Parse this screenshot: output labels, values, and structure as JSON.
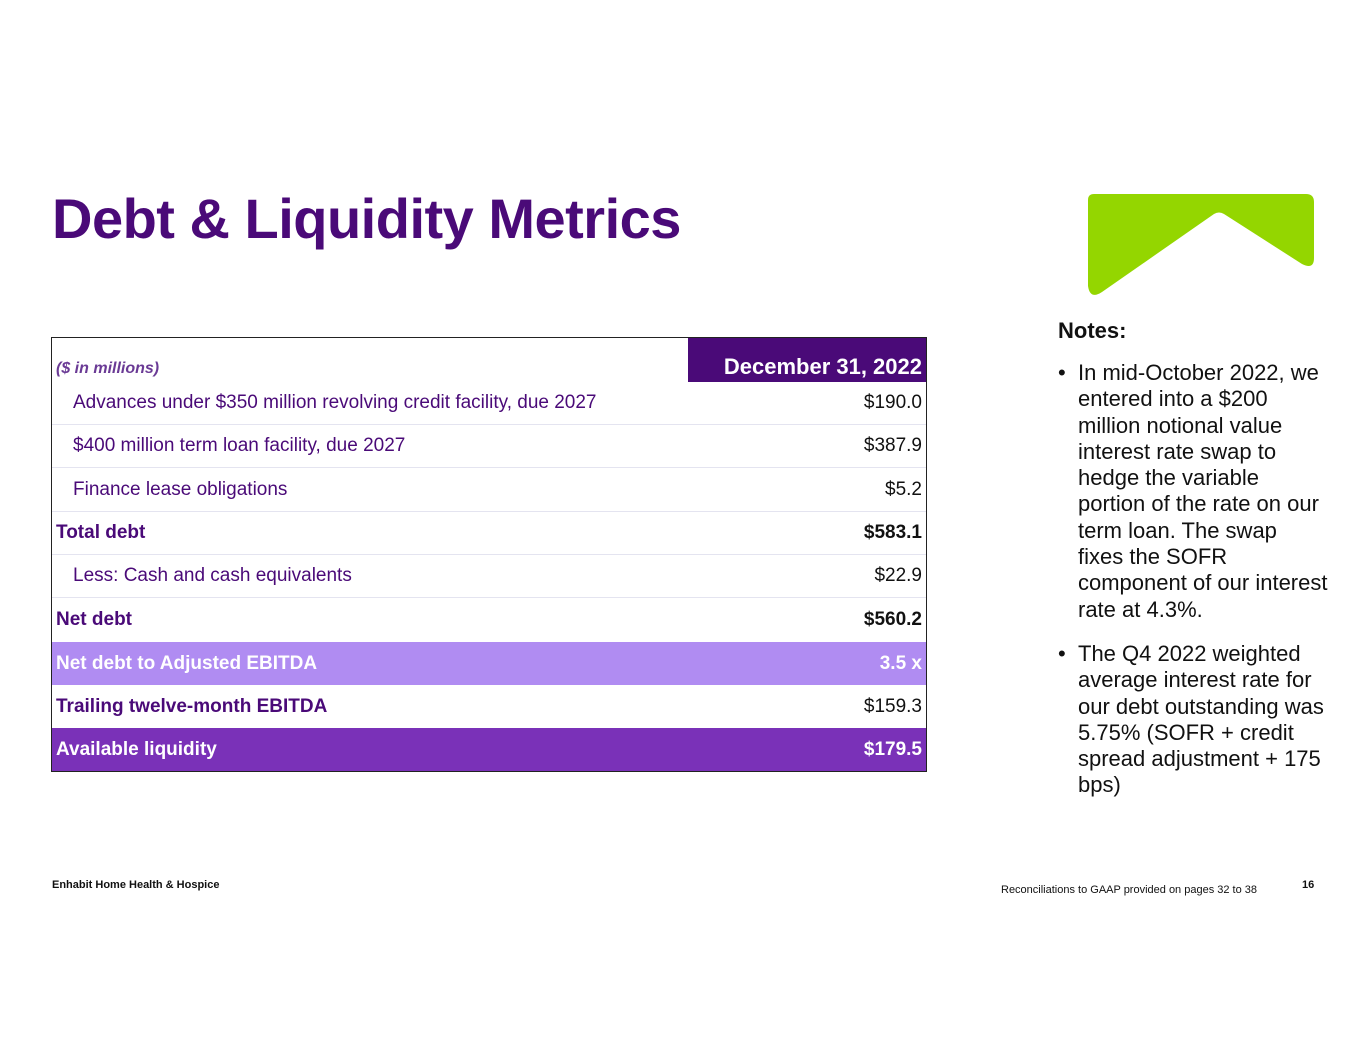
{
  "title": "Debt & Liquidity Metrics",
  "colors": {
    "brand_purple": "#4a0a78",
    "accent_light": "#b08cf2",
    "accent_dark": "#7a31b8",
    "logo_green": "#94d600"
  },
  "logo": {
    "icon": "chevron-up-logo-icon"
  },
  "table": {
    "units_label": "($ in millions)",
    "column_header": "December 31, 2022",
    "rows": [
      {
        "label": "Advances under $350 million revolving credit facility, due 2027",
        "value": "$190.0"
      },
      {
        "label": "$400 million term loan facility, due 2027",
        "value": "$387.9"
      },
      {
        "label": "Finance lease obligations",
        "value": "$5.2"
      },
      {
        "label": "Total debt",
        "value": "$583.1"
      },
      {
        "label": "Less: Cash and cash equivalents",
        "value": "$22.9"
      },
      {
        "label": "Net debt",
        "value": "$560.2"
      },
      {
        "label": "Net debt to Adjusted EBITDA",
        "value": "3.5 x"
      },
      {
        "label": "Trailing twelve-month EBITDA",
        "value": "$159.3"
      },
      {
        "label": "Available liquidity",
        "value": "$179.5"
      }
    ]
  },
  "notes": {
    "title": "Notes:",
    "bullet": "•",
    "items": [
      "In mid-October 2022, we entered into a $200 million notional value interest rate swap to hedge the variable portion of the rate on our term loan. The swap fixes the SOFR component of our interest rate at 4.3%.",
      "The Q4 2022 weighted average interest rate for our debt outstanding was 5.75% (SOFR + credit spread adjustment + 175 bps)"
    ]
  },
  "footer": {
    "company": "Enhabit Home Health & Hospice",
    "reconciliation": "Reconciliations to GAAP provided on pages 32 to 38",
    "page_number": "16"
  }
}
